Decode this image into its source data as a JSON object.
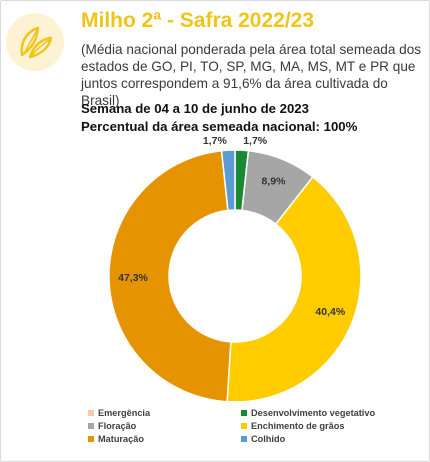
{
  "header": {
    "title": "Milho 2ª - Safra 2022/23",
    "subtitle": "(Média nacional ponderada pela área total semeada dos estados de GO, PI, TO, SP, MG, MA, MS, MT e PR que juntos correspondem a 91,6% da área cultivada do Brasil)",
    "week": "Semana de 04 a 10 de junho de 2023",
    "sown_pct": "Percentual da área semeada nacional: 100%"
  },
  "logo": {
    "icon": "corn-leaf-icon",
    "color": "#f0c419"
  },
  "chart_data": {
    "type": "pie",
    "donut": true,
    "start": "top",
    "direction": "clockwise",
    "legend_position": "bottom",
    "slices": [
      {
        "name": "Emergência",
        "value": 0.0,
        "label": "",
        "color": "#f4c9a8"
      },
      {
        "name": "Desenvolvimento vegetativo",
        "value": 1.7,
        "label": "1,7%",
        "color": "#1a8a32"
      },
      {
        "name": "Floração",
        "value": 8.9,
        "label": "8,9%",
        "color": "#a6a6a6"
      },
      {
        "name": "Enchimento de grãos",
        "value": 40.4,
        "label": "40,4%",
        "color": "#ffcc00"
      },
      {
        "name": "Maturação",
        "value": 47.3,
        "label": "47,3%",
        "color": "#e59400"
      },
      {
        "name": "Colhido",
        "value": 1.7,
        "label": "1,7%",
        "color": "#5b9bd5"
      }
    ],
    "legend_order": [
      "Emergência",
      "Desenvolvimento vegetativo",
      "Floração",
      "Enchimento de grãos",
      "Maturação",
      "Colhido"
    ]
  }
}
